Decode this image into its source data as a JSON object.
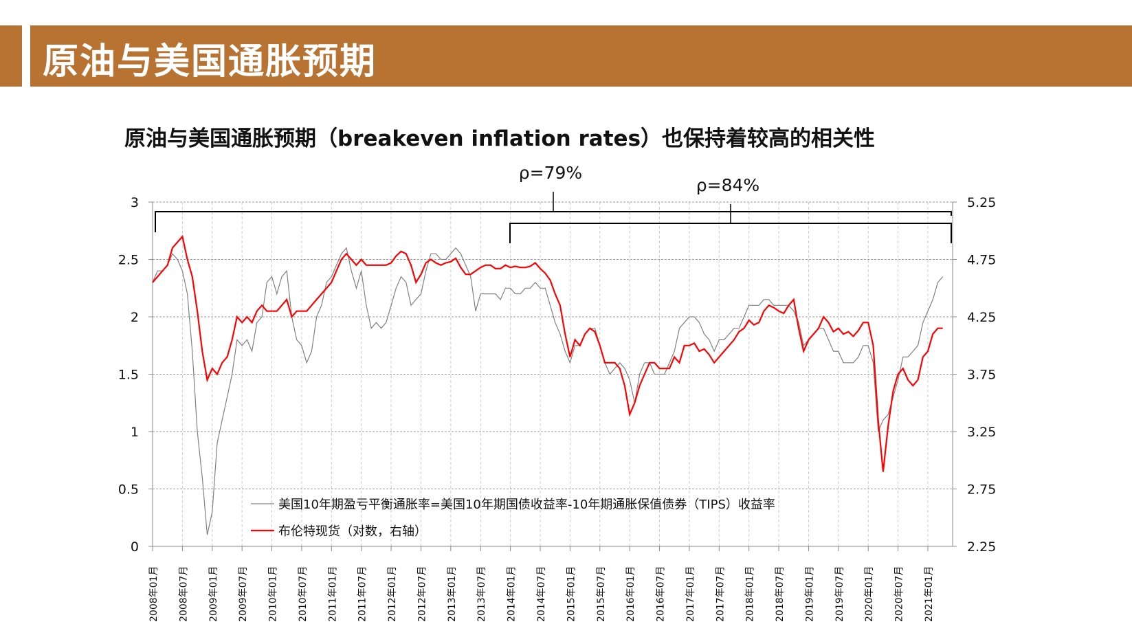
{
  "header": {
    "title": "原油与美国通胀预期",
    "color": "#B87333"
  },
  "subtitle": "原油与美国通胀预期（breakeven inflation rates）也保持着较高的相关性",
  "chart_data": {
    "type": "line",
    "title": "原油与美国通胀预期（breakeven inflation rates）也保持着较高的相关性",
    "y_left": {
      "range": [
        0,
        3
      ],
      "ticks": [
        "0",
        "0.5",
        "1",
        "1.5",
        "2",
        "2.5",
        "3"
      ]
    },
    "y_right": {
      "range": [
        2.25,
        5.25
      ],
      "ticks": [
        "2.25",
        "2.75",
        "3.25",
        "3.75",
        "4.25",
        "4.75",
        "5.25"
      ]
    },
    "x_start": "2008-01",
    "x_tick_labels": [
      "2008年01月",
      "2008年07月",
      "2009年01月",
      "2009年07月",
      "2010年01月",
      "2010年07月",
      "2011年01月",
      "2011年07月",
      "2012年01月",
      "2012年07月",
      "2013年01月",
      "2013年07月",
      "2014年01月",
      "2014年07月",
      "2015年01月",
      "2015年07月",
      "2016年01月",
      "2016年07月",
      "2017年01月",
      "2017年07月",
      "2018年01月",
      "2018年07月",
      "2019年01月",
      "2019年07月",
      "2020年01月",
      "2020年07月",
      "2021年01月"
    ],
    "grid": true,
    "legend_position": "bottom-left",
    "annotations": [
      {
        "text": "ρ=79%",
        "from": "2008-01",
        "to": "2021-04"
      },
      {
        "text": "ρ=84%",
        "from": "2014-01",
        "to": "2021-04"
      }
    ],
    "series": [
      {
        "name": "美国10年期盈亏平衡通胀率=美国10年期国债收益率-10年期通胀保值债券（TIPS）收益率",
        "axis": "left",
        "color": "#808080",
        "values": [
          2.3,
          2.4,
          2.4,
          2.45,
          2.55,
          2.5,
          2.4,
          2.2,
          1.7,
          1.0,
          0.6,
          0.1,
          0.3,
          0.9,
          1.1,
          1.3,
          1.5,
          1.8,
          1.75,
          1.8,
          1.7,
          1.95,
          2.0,
          2.3,
          2.35,
          2.2,
          2.35,
          2.4,
          2.0,
          1.8,
          1.75,
          1.6,
          1.7,
          2.0,
          2.1,
          2.3,
          2.35,
          2.45,
          2.55,
          2.6,
          2.4,
          2.25,
          2.4,
          2.1,
          1.9,
          1.95,
          1.9,
          1.95,
          2.1,
          2.25,
          2.35,
          2.3,
          2.1,
          2.15,
          2.2,
          2.4,
          2.55,
          2.55,
          2.5,
          2.5,
          2.55,
          2.6,
          2.55,
          2.45,
          2.35,
          2.05,
          2.2,
          2.2,
          2.2,
          2.2,
          2.15,
          2.25,
          2.25,
          2.2,
          2.2,
          2.25,
          2.25,
          2.3,
          2.25,
          2.25,
          2.1,
          1.95,
          1.85,
          1.7,
          1.6,
          1.75,
          1.75,
          1.85,
          1.9,
          1.9,
          1.75,
          1.6,
          1.5,
          1.55,
          1.6,
          1.55,
          1.45,
          1.25,
          1.5,
          1.6,
          1.6,
          1.5,
          1.5,
          1.5,
          1.6,
          1.7,
          1.9,
          1.95,
          2.0,
          2.0,
          1.95,
          1.85,
          1.8,
          1.7,
          1.8,
          1.8,
          1.85,
          1.9,
          1.9,
          2.0,
          2.1,
          2.1,
          2.1,
          2.15,
          2.15,
          2.1,
          2.1,
          2.1,
          2.1,
          2.05,
          1.95,
          1.75,
          1.8,
          1.85,
          1.9,
          1.9,
          1.8,
          1.7,
          1.7,
          1.6,
          1.6,
          1.6,
          1.65,
          1.75,
          1.75,
          1.6,
          1.0,
          1.1,
          1.15,
          1.3,
          1.45,
          1.65,
          1.65,
          1.7,
          1.75,
          1.95,
          2.05,
          2.15,
          2.3,
          2.35
        ]
      },
      {
        "name": "布伦特现货（对数，右轴）",
        "axis": "right",
        "color": "#FF0000",
        "values": [
          4.55,
          4.6,
          4.65,
          4.7,
          4.85,
          4.9,
          4.95,
          4.75,
          4.6,
          4.3,
          3.95,
          3.7,
          3.8,
          3.75,
          3.85,
          3.9,
          4.05,
          4.25,
          4.2,
          4.25,
          4.2,
          4.3,
          4.35,
          4.3,
          4.3,
          4.3,
          4.35,
          4.4,
          4.25,
          4.3,
          4.3,
          4.3,
          4.35,
          4.4,
          4.45,
          4.5,
          4.55,
          4.65,
          4.75,
          4.8,
          4.75,
          4.7,
          4.75,
          4.7,
          4.7,
          4.7,
          4.7,
          4.7,
          4.72,
          4.78,
          4.82,
          4.8,
          4.7,
          4.55,
          4.62,
          4.72,
          4.75,
          4.72,
          4.7,
          4.72,
          4.73,
          4.76,
          4.68,
          4.62,
          4.62,
          4.65,
          4.68,
          4.7,
          4.7,
          4.67,
          4.67,
          4.7,
          4.68,
          4.69,
          4.68,
          4.68,
          4.69,
          4.72,
          4.67,
          4.63,
          4.57,
          4.45,
          4.35,
          4.1,
          3.9,
          4.05,
          4.0,
          4.1,
          4.15,
          4.12,
          4.0,
          3.85,
          3.85,
          3.85,
          3.8,
          3.65,
          3.4,
          3.5,
          3.65,
          3.75,
          3.85,
          3.85,
          3.8,
          3.8,
          3.8,
          3.9,
          3.85,
          4.0,
          4.0,
          4.02,
          3.95,
          3.97,
          3.92,
          3.85,
          3.9,
          3.95,
          4.0,
          4.05,
          4.12,
          4.15,
          4.22,
          4.18,
          4.2,
          4.3,
          4.35,
          4.33,
          4.3,
          4.28,
          4.35,
          4.4,
          4.15,
          3.95,
          4.05,
          4.1,
          4.15,
          4.25,
          4.2,
          4.12,
          4.15,
          4.1,
          4.12,
          4.08,
          4.13,
          4.2,
          4.2,
          4.0,
          3.35,
          2.9,
          3.3,
          3.6,
          3.75,
          3.8,
          3.7,
          3.65,
          3.7,
          3.9,
          3.95,
          4.1,
          4.15,
          4.15
        ]
      }
    ]
  }
}
